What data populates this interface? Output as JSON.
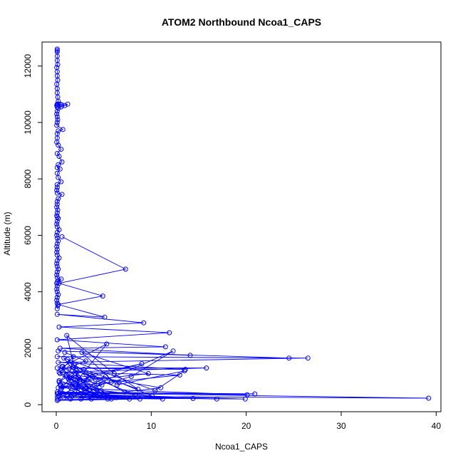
{
  "chart_data": {
    "type": "line",
    "title": "ATOM2 Northbound Ncoa1_CAPS",
    "xlabel": "Ncoa1_CAPS",
    "ylabel": "Altitude (m)",
    "xlim": [
      -1.5,
      40.5
    ],
    "ylim": [
      -250,
      12850
    ],
    "xticks": [
      0,
      10,
      20,
      30,
      40
    ],
    "yticks": [
      0,
      2000,
      4000,
      6000,
      8000,
      10000,
      12000
    ],
    "xtick_labels": [
      "0",
      "10",
      "20",
      "30",
      "40"
    ],
    "ytick_labels": [
      "0",
      "2000",
      "4000",
      "6000",
      "8000",
      "10000",
      "12000"
    ],
    "color": "#0000ff",
    "series": [
      {
        "x": [
          0.1,
          0.1,
          0.1,
          0.1,
          0.1,
          0.15,
          0.05,
          0.1,
          0.1,
          0.15,
          0.05,
          0.1,
          0.1,
          0.15,
          0.2,
          0.1,
          0.05,
          0.1,
          0.1,
          0.2,
          0.4,
          0.6,
          0.9,
          1.2,
          0.5,
          0.2,
          0.1,
          0.05,
          0.1,
          0.15,
          0.1,
          0.05,
          0.7,
          0.2,
          0.1,
          0.1,
          0.05,
          0.2,
          0.5,
          0.1,
          0.3,
          0.6,
          0.2,
          0.1,
          0.4,
          0.1,
          0.2,
          0.5,
          0.1,
          0.1,
          0.05,
          0.1,
          0.6,
          0.2,
          0.1,
          0.1,
          0.05,
          0.15,
          0.1,
          0.05,
          0.1,
          0.2,
          0.1,
          0.05,
          0.1,
          0.3,
          0.1,
          0.05,
          0.1,
          0.2,
          0.1,
          0.05,
          0.1,
          0.05,
          0.1,
          0.3,
          0.1,
          0.05,
          0.1,
          0.2,
          0.1,
          0.05,
          0.1,
          0.5,
          0.2,
          0.1,
          0.05,
          0.1,
          0.05,
          0.1,
          0.2,
          0.1,
          0.05,
          0.1,
          0.15,
          0.1
        ],
        "y": [
          12600,
          12550,
          12500,
          12350,
          12200,
          12050,
          11950,
          11800,
          11650,
          11500,
          11350,
          11200,
          11050,
          10900,
          10750,
          10650,
          10600,
          10550,
          10600,
          10650,
          10650,
          10620,
          10600,
          10650,
          10550,
          10500,
          10400,
          10300,
          10200,
          10100,
          10000,
          9900,
          9750,
          9700,
          9600,
          9450,
          9300,
          9200,
          9050,
          8900,
          8800,
          8600,
          8500,
          8400,
          8350,
          8200,
          8050,
          7900,
          7800,
          7700,
          7600,
          7500,
          7450,
          7300,
          7200,
          7100,
          7000,
          6900,
          6800,
          6700,
          6650,
          6600,
          6500,
          6400,
          6300,
          6200,
          6100,
          6000,
          5900,
          5800,
          5700,
          5600,
          5500,
          5400,
          5300,
          5200,
          5100,
          5000,
          4900,
          4800,
          4700,
          4600,
          4500,
          4450,
          4400,
          4350,
          4300,
          4200,
          4100,
          4000,
          3900,
          3800,
          3700,
          3600,
          3500,
          3400
        ]
      },
      {
        "x": [
          0.6,
          7.3,
          0.3,
          4.9,
          0.2,
          5.1,
          0.1,
          9.2,
          0.3,
          11.9,
          0.1,
          11.5,
          0.4,
          14.1,
          0.2,
          24.5,
          0.1,
          26.5,
          0.2,
          13.6,
          0.1,
          15.8,
          0.3,
          13.0,
          0.2,
          20.1,
          0.1,
          20.9,
          0.4,
          39.2,
          0.2,
          16.9,
          0.1,
          14.4,
          0.3,
          11.2,
          0.1,
          19.9,
          0.2,
          8.8,
          0.1,
          7.7,
          0.2,
          5.4
        ],
        "y": [
          5950,
          4800,
          4300,
          3850,
          3550,
          3100,
          3200,
          2900,
          2750,
          2550,
          2300,
          2050,
          2000,
          1750,
          1900,
          1650,
          1700,
          1650,
          1500,
          1250,
          1300,
          1300,
          1150,
          1050,
          600,
          350,
          450,
          380,
          420,
          230,
          300,
          200,
          380,
          220,
          300,
          200,
          250,
          200,
          400,
          200,
          150,
          200,
          180,
          200
        ]
      },
      {
        "x": [
          0.9,
          3.1,
          0.5,
          1.8,
          1.3,
          0.7,
          5.3,
          2.2,
          0.4,
          9.0,
          3.6,
          2.4,
          1.1,
          6.1,
          8.6,
          2.9,
          1.6,
          4.4,
          12.3,
          7.9,
          5.8,
          3.2,
          0.8,
          10.4,
          13.5,
          6.4,
          2.7,
          9.7,
          4.1,
          1.9,
          7.2,
          11.0,
          3.8,
          1.4,
          8.3,
          4.7,
          2.0,
          6.6,
          10.1,
          3.5,
          1.2,
          5.5,
          0.6,
          2.6
        ],
        "y": [
          1850,
          1550,
          1200,
          1700,
          900,
          1350,
          2150,
          850,
          700,
          1450,
          1050,
          650,
          2450,
          1100,
          550,
          1250,
          950,
          750,
          1900,
          1000,
          800,
          600,
          1650,
          500,
          1200,
          700,
          1850,
          1100,
          900,
          1400,
          450,
          600,
          1000,
          1300,
          350,
          500,
          1050,
          800,
          300,
          550,
          1600,
          250,
          1350,
          200
        ]
      },
      {
        "x": [
          1.0,
          0.3,
          2.1,
          0.5,
          3.4,
          1.2,
          4.8,
          0.4,
          2.9,
          1.7,
          0.8,
          3.9,
          2.5,
          0.6,
          5.2,
          1.5,
          3.1,
          0.3,
          4.2,
          2.0,
          6.3,
          1.1,
          3.7,
          0.7,
          2.3,
          5.8,
          1.4,
          4.5,
          0.5,
          2.8
        ],
        "y": [
          1050,
          800,
          1200,
          550,
          950,
          300,
          700,
          1100,
          350,
          650,
          250,
          450,
          900,
          600,
          1000,
          200,
          550,
          850,
          350,
          750,
          250,
          1050,
          200,
          400,
          600,
          200,
          950,
          250,
          700,
          300
        ]
      }
    ]
  }
}
